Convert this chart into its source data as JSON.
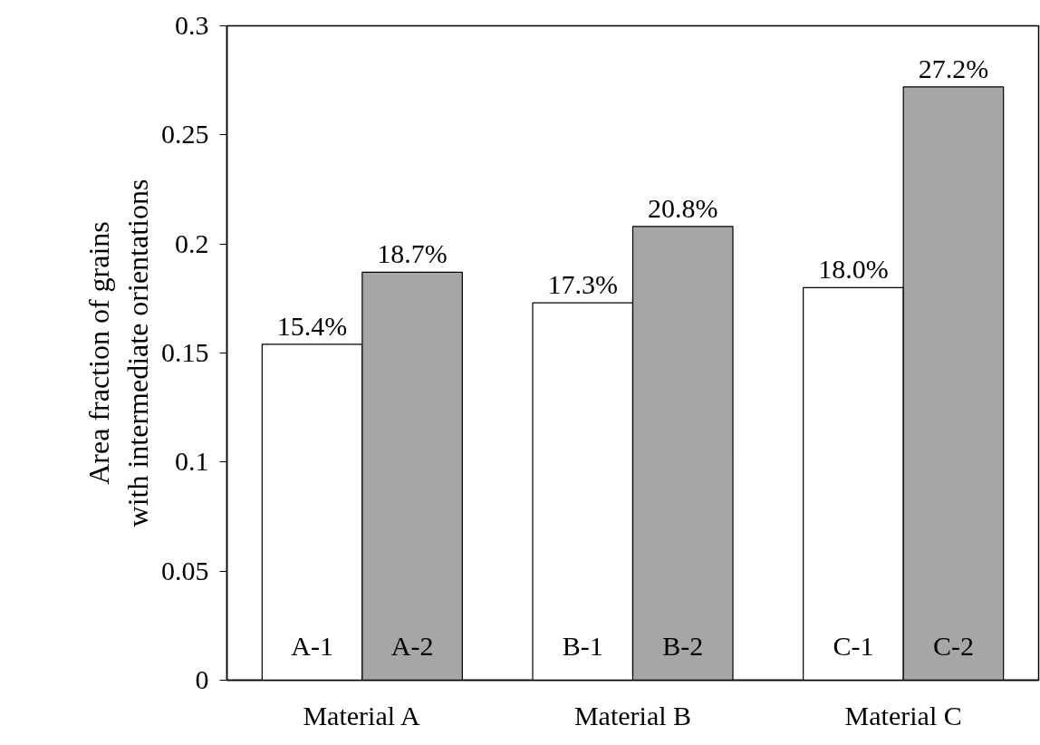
{
  "chart_data": {
    "type": "bar",
    "ylabel": "Area fraction of grains\nwith intermediate orientations",
    "categories": [
      "Material A",
      "Material B",
      "Material C"
    ],
    "series": [
      {
        "color": "#ffffff",
        "values": [
          0.154,
          0.173,
          0.18
        ],
        "value_labels": [
          "15.4%",
          "17.3%",
          "18.0%"
        ]
      },
      {
        "color": "#a6a6a6",
        "values": [
          0.187,
          0.208,
          0.272
        ],
        "value_labels": [
          "18.7%",
          "20.8%",
          "27.2%"
        ]
      }
    ],
    "annotations": [
      "A-1",
      "A-2",
      "B-1",
      "B-2",
      "C-1",
      "C-2"
    ],
    "ylim": [
      0,
      0.3
    ],
    "yticks": [
      0,
      0.05,
      0.1,
      0.15,
      0.2,
      0.25,
      0.3
    ],
    "grid": false
  }
}
